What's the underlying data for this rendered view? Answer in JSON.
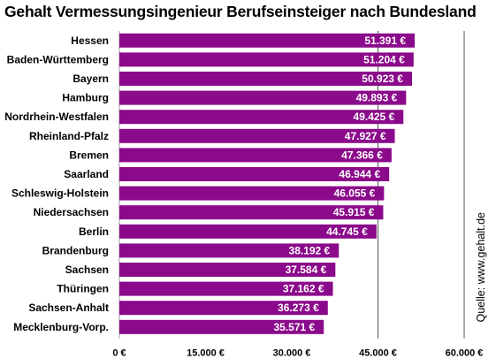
{
  "chart_data": {
    "type": "bar",
    "orientation": "horizontal",
    "title": "Gehalt Vermessungsingenieur Berufseinsteiger nach Bundesland",
    "source": "Quelle: www.gehalt.de",
    "xlabel": "",
    "ylabel": "",
    "xlim": [
      0,
      60000
    ],
    "xticks": [
      0,
      15000,
      30000,
      45000,
      60000
    ],
    "xtick_labels": [
      "0 €",
      "15.000 €",
      "30.000 €",
      "45.000 €",
      "60.000 €"
    ],
    "grid": "vertical lines at 45.000 € and 60.000 €",
    "bar_color": "#8B0A8B",
    "categories": [
      "Hessen",
      "Baden-Württemberg",
      "Bayern",
      "Hamburg",
      "Nordrhein-Westfalen",
      "Rheinland-Pfalz",
      "Bremen",
      "Saarland",
      "Schleswig-Holstein",
      "Niedersachsen",
      "Berlin",
      "Brandenburg",
      "Sachsen",
      "Thüringen",
      "Sachsen-Anhalt",
      "Mecklenburg-Vorp."
    ],
    "values": [
      51391,
      51204,
      50923,
      49893,
      49425,
      47927,
      47366,
      46944,
      46055,
      45915,
      44745,
      38192,
      37584,
      37162,
      36273,
      35571
    ],
    "value_labels": [
      "51.391 €",
      "51.204 €",
      "50.923 €",
      "49.893 €",
      "49.425 €",
      "47.927 €",
      "47.366 €",
      "46.944 €",
      "46.055 €",
      "45.915 €",
      "44.745 €",
      "38.192 €",
      "37.584 €",
      "37.162 €",
      "36.273 €",
      "35.571 €"
    ]
  }
}
